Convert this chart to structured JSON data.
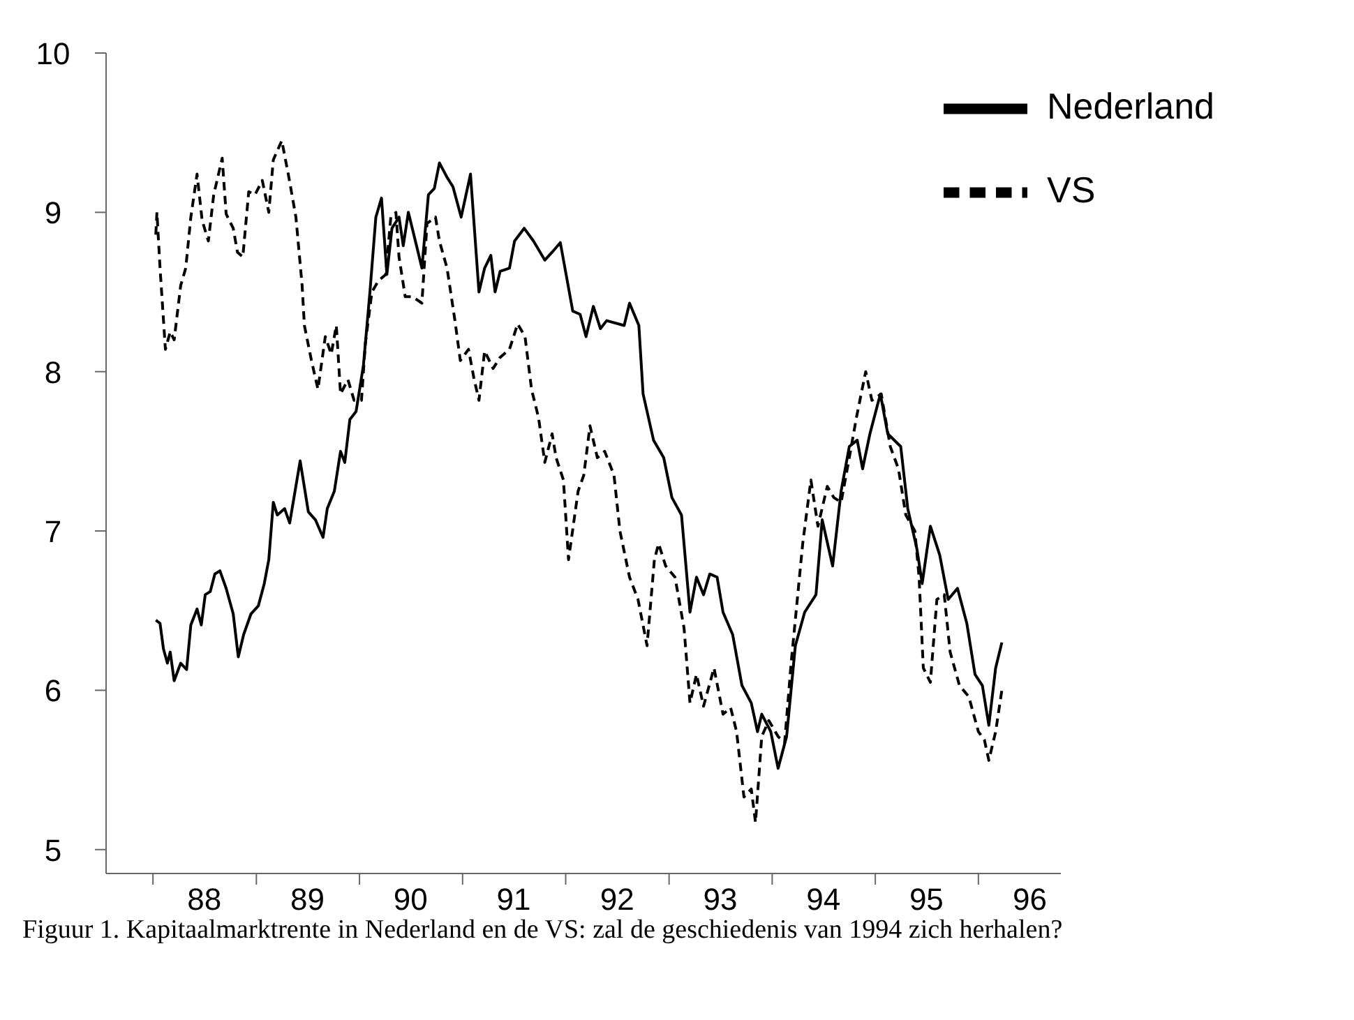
{
  "chart_data": {
    "type": "line",
    "annotations": [
      "Figuur 1. Kapitaalmarktrente in Nederland en de VS: zal de geschiedenis van 1994 zich herhalen?"
    ],
    "xlim": [
      "1987-07-19",
      "1996-10-19"
    ],
    "ylim": [
      4.85,
      10
    ],
    "xticks": [
      {
        "value": "1988",
        "label": null
      },
      {
        "value": "1988-07",
        "label": "88"
      },
      {
        "value": "1989",
        "label": null
      },
      {
        "value": "1989-07",
        "label": "89"
      },
      {
        "value": "1990",
        "label": null
      },
      {
        "value": "1990-07",
        "label": "90"
      },
      {
        "value": "1991",
        "label": null
      },
      {
        "value": "1991-07",
        "label": "91"
      },
      {
        "value": "1992",
        "label": null
      },
      {
        "value": "1992-07",
        "label": "92"
      },
      {
        "value": "1993",
        "label": null
      },
      {
        "value": "1993-07",
        "label": "93"
      },
      {
        "value": "1994",
        "label": null
      },
      {
        "value": "1994-07",
        "label": "94"
      },
      {
        "value": "1995",
        "label": null
      },
      {
        "value": "1995-07",
        "label": "95"
      },
      {
        "value": "1996",
        "label": null
      },
      {
        "value": "1996-07",
        "label": "96"
      }
    ],
    "yticks": [
      5,
      6,
      7,
      8,
      9,
      10
    ],
    "grid": false,
    "legend": "top right",
    "marker": "none",
    "series": [
      {
        "name": "Nederland",
        "color": "#000000",
        "line_style": "solid",
        "x": [
          "1988-01-11",
          "1988-01-26",
          "1988-02-07",
          "1988-02-21",
          "1988-03-02",
          "1988-03-16",
          "1988-04-08",
          "1988-04-29",
          "1988-05-14",
          "1988-06-05",
          "1988-06-20",
          "1988-07-04",
          "1988-07-22",
          "1988-08-07",
          "1988-08-25",
          "1988-09-16",
          "1988-10-11",
          "1988-10-29",
          "1988-11-17",
          "1988-12-13",
          "1989-01-08",
          "1989-01-29",
          "1989-02-14",
          "1989-03-02",
          "1989-03-16",
          "1989-04-11",
          "1989-04-29",
          "1989-06-05",
          "1989-07-04",
          "1989-07-29",
          "1989-08-25",
          "1989-09-09",
          "1989-10-04",
          "1989-10-26",
          "1989-11-10",
          "1989-11-28",
          "1989-12-20",
          "1990-01-15",
          "1990-02-07",
          "1990-02-28",
          "1990-03-20",
          "1990-04-08",
          "1990-04-26",
          "1990-05-21",
          "1990-06-05",
          "1990-06-23",
          "1990-07-22",
          "1990-08-10",
          "1990-09-02",
          "1990-09-23",
          "1990-10-11",
          "1990-11-07",
          "1990-11-28",
          "1990-12-27",
          "1991-01-29",
          "1991-02-28",
          "1991-03-20",
          "1991-04-11",
          "1991-04-26",
          "1991-05-14",
          "1991-06-16",
          "1991-07-04",
          "1991-08-07",
          "1991-09-09",
          "1991-10-19",
          "1991-11-14",
          "1991-12-13",
          "1992-01-26",
          "1992-02-21",
          "1992-03-13",
          "1992-04-08",
          "1992-05-03",
          "1992-05-25",
          "1992-07-26",
          "1992-08-14",
          "1992-09-16",
          "1992-10-01",
          "1992-11-07",
          "1992-12-13",
          "1993-01-11",
          "1993-02-14",
          "1993-03-16",
          "1993-04-08",
          "1993-05-03",
          "1993-05-25",
          "1993-06-20",
          "1993-07-11",
          "1993-08-14",
          "1993-09-16",
          "1993-10-19",
          "1993-11-10",
          "1993-11-25",
          "1993-12-27",
          "1994-01-22",
          "1994-02-21",
          "1994-03-24",
          "1994-04-26",
          "1994-06-05",
          "1994-06-27",
          "1994-08-03",
          "1994-09-02",
          "1994-10-01",
          "1994-10-29",
          "1994-11-17",
          "1994-12-13",
          "1995-01-19",
          "1995-02-14",
          "1995-04-01",
          "1995-04-26",
          "1995-05-28",
          "1995-06-16",
          "1995-07-15",
          "1995-08-17",
          "1995-09-16",
          "1995-10-19",
          "1995-11-21",
          "1995-12-20",
          "1996-01-15",
          "1996-02-07",
          "1996-03-02",
          "1996-03-24"
        ],
        "values": [
          6.44,
          6.42,
          6.26,
          6.17,
          6.24,
          6.06,
          6.17,
          6.13,
          6.41,
          6.51,
          6.41,
          6.6,
          6.62,
          6.73,
          6.75,
          6.64,
          6.48,
          6.21,
          6.35,
          6.48,
          6.53,
          6.67,
          6.82,
          7.18,
          7.1,
          7.14,
          7.05,
          7.44,
          7.12,
          7.07,
          6.96,
          7.14,
          7.25,
          7.5,
          7.43,
          7.7,
          7.75,
          8.04,
          8.5,
          8.97,
          9.09,
          8.61,
          8.9,
          8.97,
          8.79,
          9.0,
          8.79,
          8.65,
          9.11,
          9.15,
          9.31,
          9.22,
          9.16,
          8.97,
          9.24,
          8.5,
          8.65,
          8.73,
          8.5,
          8.63,
          8.65,
          8.82,
          8.9,
          8.82,
          8.7,
          8.75,
          8.81,
          8.38,
          8.36,
          8.22,
          8.41,
          8.27,
          8.32,
          8.29,
          8.43,
          8.29,
          7.86,
          7.57,
          7.46,
          7.21,
          7.1,
          6.49,
          6.71,
          6.6,
          6.73,
          6.71,
          6.49,
          6.35,
          6.03,
          5.92,
          5.74,
          5.85,
          5.74,
          5.51,
          5.71,
          6.28,
          6.49,
          6.6,
          7.07,
          6.78,
          7.25,
          7.53,
          7.57,
          7.39,
          7.61,
          7.86,
          7.61,
          7.53,
          7.14,
          6.89,
          6.67,
          7.03,
          6.85,
          6.57,
          6.64,
          6.42,
          6.1,
          6.03,
          5.78,
          6.14,
          6.3
        ]
      },
      {
        "name": "VS",
        "color": "#000000",
        "line_style": "dashed",
        "x": [
          "1988-01-11",
          "1988-01-15",
          "1988-01-26",
          "1988-02-14",
          "1988-03-02",
          "1988-03-16",
          "1988-04-08",
          "1988-04-26",
          "1988-05-14",
          "1988-06-05",
          "1988-06-23",
          "1988-07-15",
          "1988-08-03",
          "1988-09-02",
          "1988-09-16",
          "1988-10-11",
          "1988-10-26",
          "1988-11-14",
          "1988-12-05",
          "1988-12-27",
          "1989-01-22",
          "1989-02-14",
          "1989-03-02",
          "1989-04-01",
          "1989-04-26",
          "1989-05-21",
          "1989-06-12",
          "1989-06-20",
          "1989-07-15",
          "1989-08-07",
          "1989-09-02",
          "1989-09-23",
          "1989-10-11",
          "1989-10-26",
          "1989-11-21",
          "1989-12-13",
          "1990-01-08",
          "1990-01-22",
          "1990-02-14",
          "1990-03-09",
          "1990-04-04",
          "1990-04-22",
          "1990-05-10",
          "1990-05-21",
          "1990-06-12",
          "1990-07-08",
          "1990-08-10",
          "1990-08-28",
          "1990-09-27",
          "1990-10-11",
          "1990-11-07",
          "1990-12-05",
          "1990-12-24",
          "1991-01-22",
          "1991-02-10",
          "1991-02-28",
          "1991-03-20",
          "1991-04-19",
          "1991-05-14",
          "1991-06-16",
          "1991-07-15",
          "1991-08-10",
          "1991-09-02",
          "1991-09-27",
          "1991-10-19",
          "1991-11-14",
          "1991-11-28",
          "1991-12-24",
          "1992-01-11",
          "1992-02-14",
          "1992-03-05",
          "1992-03-27",
          "1992-04-22",
          "1992-05-18",
          "1992-06-20",
          "1992-07-11",
          "1992-08-14",
          "1992-09-13",
          "1992-10-15",
          "1992-11-10",
          "1992-11-25",
          "1992-12-20",
          "1993-01-22",
          "1993-02-23",
          "1993-03-16",
          "1993-04-08",
          "1993-05-03",
          "1993-06-09",
          "1993-07-11",
          "1993-08-07",
          "1993-08-28",
          "1993-09-23",
          "1993-10-19",
          "1993-11-03",
          "1993-11-25",
          "1993-12-20",
          "1994-01-22",
          "1994-02-14",
          "1994-03-09",
          "1994-04-19",
          "1994-05-18",
          "1994-06-12",
          "1994-07-15",
          "1994-08-07",
          "1994-09-02",
          "1994-10-01",
          "1994-10-26",
          "1994-11-28",
          "1994-12-20",
          "1995-01-22",
          "1995-02-23",
          "1995-03-24",
          "1995-04-19",
          "1995-05-21",
          "1995-06-05",
          "1995-06-20",
          "1995-07-15",
          "1995-08-07",
          "1995-09-02",
          "1995-09-23",
          "1995-10-26",
          "1995-11-28",
          "1996-01-01",
          "1996-01-22",
          "1996-02-07",
          "1996-03-02",
          "1996-03-24"
        ],
        "values": [
          8.86,
          9.0,
          8.65,
          8.14,
          8.25,
          8.2,
          8.54,
          8.65,
          8.97,
          9.24,
          8.95,
          8.82,
          9.11,
          9.34,
          8.99,
          8.9,
          8.75,
          8.72,
          9.13,
          9.11,
          9.2,
          9.0,
          9.33,
          9.45,
          9.22,
          8.97,
          8.54,
          8.29,
          8.07,
          7.89,
          8.22,
          8.11,
          8.29,
          7.86,
          7.95,
          7.82,
          7.82,
          8.18,
          8.5,
          8.57,
          8.61,
          8.97,
          9.0,
          8.72,
          8.47,
          8.47,
          8.43,
          8.93,
          8.97,
          8.82,
          8.65,
          8.32,
          8.07,
          8.14,
          7.96,
          7.82,
          8.13,
          8.02,
          8.09,
          8.14,
          8.3,
          8.22,
          7.89,
          7.71,
          7.43,
          7.61,
          7.46,
          7.32,
          6.82,
          7.25,
          7.35,
          7.66,
          7.46,
          7.5,
          7.35,
          7.0,
          6.71,
          6.57,
          6.28,
          6.82,
          6.92,
          6.78,
          6.71,
          6.39,
          5.92,
          6.1,
          5.9,
          6.14,
          5.85,
          5.89,
          5.74,
          5.33,
          5.38,
          5.17,
          5.71,
          5.81,
          5.71,
          5.67,
          6.17,
          6.92,
          7.32,
          7.03,
          7.28,
          7.21,
          7.18,
          7.46,
          7.71,
          8.0,
          7.82,
          7.86,
          7.53,
          7.39,
          7.1,
          7.0,
          6.71,
          6.14,
          6.05,
          6.57,
          6.6,
          6.24,
          6.03,
          5.96,
          5.74,
          5.69,
          5.56,
          5.74,
          6.0
        ]
      }
    ]
  }
}
